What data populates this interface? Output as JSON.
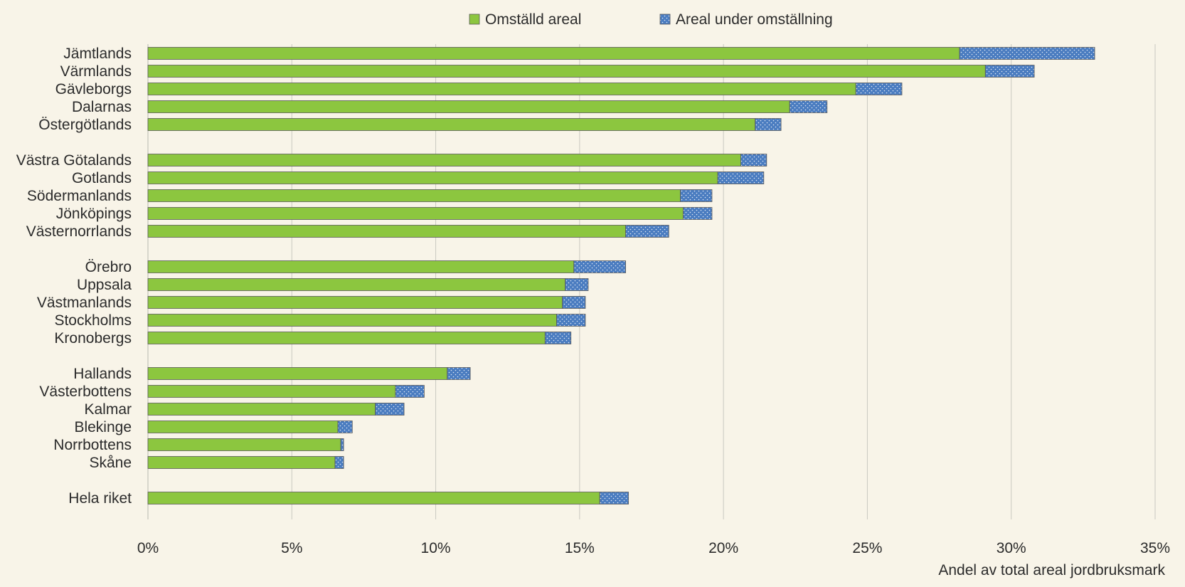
{
  "chart_data": {
    "type": "bar",
    "orientation": "horizontal",
    "stacked": true,
    "xlabel": "Andel av total areal jordbruksmark",
    "ylabel": "",
    "xlim": [
      0,
      35
    ],
    "x_ticks": [
      0,
      5,
      10,
      15,
      20,
      25,
      30,
      35
    ],
    "x_tick_labels": [
      "0%",
      "5%",
      "10%",
      "15%",
      "20%",
      "25%",
      "30%",
      "35%"
    ],
    "grid": true,
    "legend_position": "top",
    "categories": [
      "Jämtlands",
      "Värmlands",
      "Gävleborgs",
      "Dalarnas",
      "Östergötlands",
      "Västra Götalands",
      "Gotlands",
      "Södermanlands",
      "Jönköpings",
      "Västernorrlands",
      "Örebro",
      "Uppsala",
      "Västmanlands",
      "Stockholms",
      "Kronobergs",
      "Hallands",
      "Västerbottens",
      "Kalmar",
      "Blekinge",
      "Norrbottens",
      "Skåne",
      "Hela riket"
    ],
    "groups": [
      5,
      5,
      5,
      6,
      1
    ],
    "series": [
      {
        "name": "Omställd areal",
        "color": "#8cc63f",
        "pattern": "solid",
        "values": [
          28.2,
          29.1,
          24.6,
          22.3,
          21.1,
          20.6,
          19.8,
          18.5,
          18.6,
          16.6,
          14.8,
          14.5,
          14.4,
          14.2,
          13.8,
          10.4,
          8.6,
          7.9,
          6.6,
          6.7,
          6.5,
          15.7
        ]
      },
      {
        "name": "Areal under omställning",
        "color": "#4a7cc0",
        "pattern": "dotted",
        "values": [
          4.7,
          1.7,
          1.6,
          1.3,
          0.9,
          0.9,
          1.6,
          1.1,
          1.0,
          1.5,
          1.8,
          0.8,
          0.8,
          1.0,
          0.9,
          0.8,
          1.0,
          1.0,
          0.5,
          0.1,
          0.3,
          1.0
        ]
      }
    ]
  }
}
